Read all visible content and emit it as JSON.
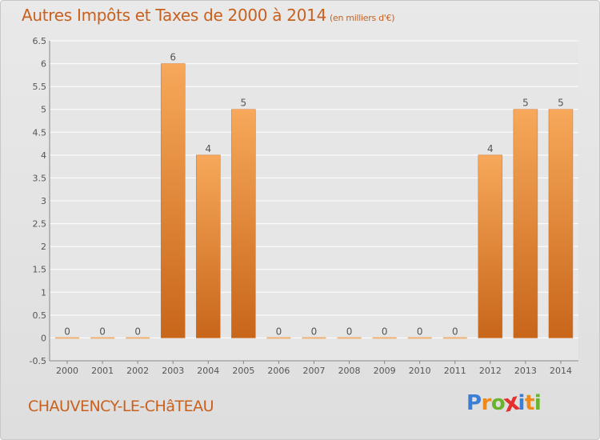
{
  "header": {
    "title": "Autres Impôts et Taxes de 2000 à 2014",
    "subtitle": "(en milliers d'€)"
  },
  "footer": {
    "city": "CHAUVENCY-LE-CHâTEAU",
    "logo_letters": [
      "P",
      "r",
      "o",
      "x",
      "i",
      "t",
      "i"
    ],
    "logo_colors": [
      "#3a7fd5",
      "#ef8a1a",
      "#6ab42d",
      "#e5312e",
      "#3a7fd5",
      "#ef8a1a",
      "#6ab42d"
    ]
  },
  "colors": {
    "bar_light": "#f7a85a",
    "bar_dark": "#c8661a",
    "zero_bar": "#f2b277",
    "label": "#555555",
    "grid": "#ffffff"
  },
  "chart_data": {
    "type": "bar",
    "title": "Autres Impôts et Taxes de 2000 à 2014",
    "subtitle": "(en milliers d'€)",
    "categories": [
      "2000",
      "2001",
      "2002",
      "2003",
      "2004",
      "2005",
      "2006",
      "2007",
      "2008",
      "2009",
      "2010",
      "2011",
      "2012",
      "2013",
      "2014"
    ],
    "values": [
      0,
      0,
      0,
      6,
      4,
      5,
      0,
      0,
      0,
      0,
      0,
      0,
      4,
      5,
      5
    ],
    "data_labels": [
      "0",
      "0",
      "0",
      "6",
      "4",
      "5",
      "0",
      "0",
      "0",
      "0",
      "0",
      "0",
      "4",
      "5",
      "5"
    ],
    "y_ticks": [
      "-0.5",
      "0",
      "0.5",
      "1",
      "1.5",
      "2",
      "2.5",
      "3",
      "3.5",
      "4",
      "4.5",
      "5",
      "5.5",
      "6",
      "6.5"
    ],
    "ylim": [
      -0.5,
      6.5
    ],
    "grid": true
  }
}
